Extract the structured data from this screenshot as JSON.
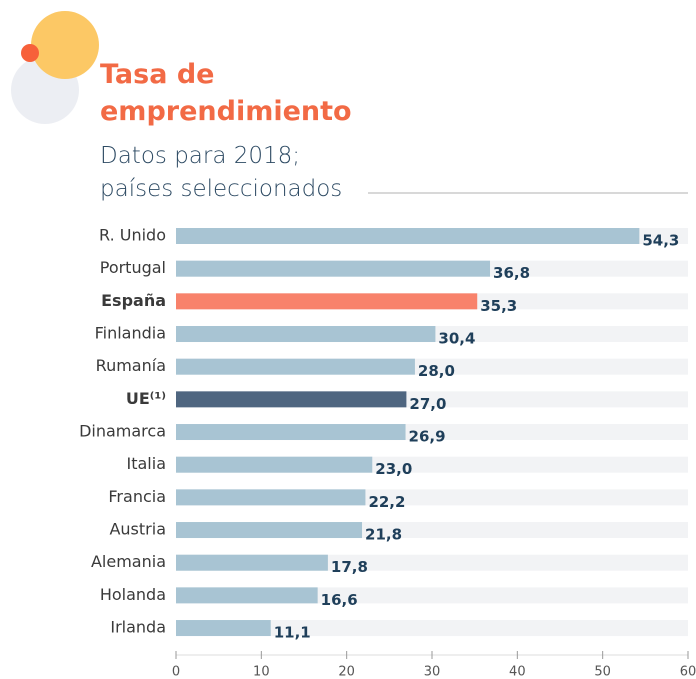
{
  "chart_data": {
    "type": "bar",
    "orientation": "horizontal",
    "title": "Tasa de emprendimiento",
    "subtitle": "Datos para 2018; países seleccionados",
    "categories": [
      "R. Unido",
      "Portugal",
      "España",
      "Finlandia",
      "Rumanía",
      "UE⁽¹⁾",
      "Dinamarca",
      "Italia",
      "Francia",
      "Austria",
      "Alemania",
      "Holanda",
      "Irlanda"
    ],
    "values": [
      54.3,
      36.8,
      35.3,
      30.4,
      28.0,
      27.0,
      26.9,
      23.0,
      22.2,
      21.8,
      17.8,
      16.6,
      11.1
    ],
    "value_labels": [
      "54,3",
      "36,8",
      "35,3",
      "30,4",
      "28,0",
      "27,0",
      "26,9",
      "23,0",
      "22,2",
      "21,8",
      "17,8",
      "16,6",
      "11,1"
    ],
    "color": "#a8c4d3",
    "colors": [
      "#a8c4d3",
      "#a8c4d3",
      "#f8826b",
      "#a8c4d3",
      "#a8c4d3",
      "#4f6680",
      "#a8c4d3",
      "#a8c4d3",
      "#a8c4d3",
      "#a8c4d3",
      "#a8c4d3",
      "#a8c4d3",
      "#a8c4d3"
    ],
    "xlim": [
      0,
      60
    ],
    "xticks": [
      0,
      10,
      20,
      30,
      40,
      50,
      60
    ]
  }
}
